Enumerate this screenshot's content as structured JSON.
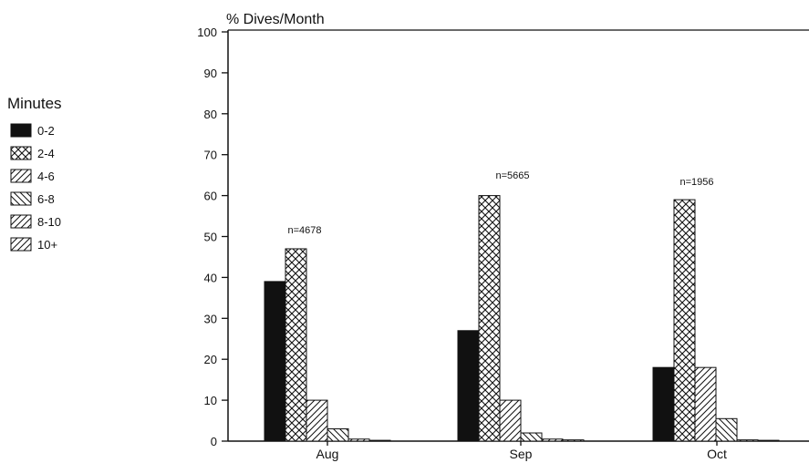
{
  "chart_data": {
    "type": "bar",
    "ylabel": "% Dives/Month",
    "ylim": [
      0,
      100
    ],
    "yticks": [
      0,
      10,
      20,
      30,
      40,
      50,
      60,
      70,
      80,
      90,
      100
    ],
    "categories": [
      "Aug",
      "Sep",
      "Oct"
    ],
    "legend_title": "Minutes",
    "legend_position": "left",
    "grid": false,
    "annotations": [
      "n=4678",
      "n=5665",
      "n=1956"
    ],
    "series": [
      {
        "name": "0-2",
        "pattern": "solid",
        "values": [
          39,
          27,
          18
        ]
      },
      {
        "name": "2-4",
        "pattern": "crosshatch",
        "values": [
          47,
          60,
          59
        ]
      },
      {
        "name": "4-6",
        "pattern": "diagonal-up",
        "values": [
          10,
          10,
          18
        ]
      },
      {
        "name": "6-8",
        "pattern": "diagonal-down",
        "values": [
          3,
          2,
          5.5
        ]
      },
      {
        "name": "8-10",
        "pattern": "diagonal-up",
        "values": [
          0.5,
          0.5,
          0.3
        ]
      },
      {
        "name": "10+",
        "pattern": "diagonal-up",
        "values": [
          0.2,
          0.3,
          0.2
        ]
      }
    ],
    "colors": {
      "ink": "#111111",
      "background": "#ffffff"
    }
  }
}
